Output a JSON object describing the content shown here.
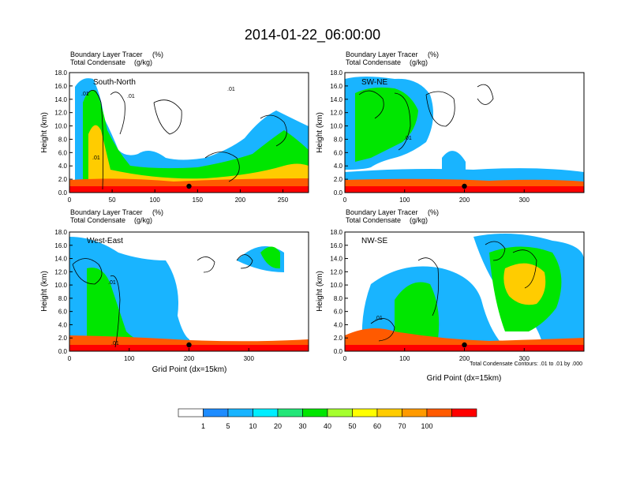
{
  "figure": {
    "title": "2014-01-22_06:00:00"
  },
  "panels": [
    {
      "var_line1": "Boundary Layer Tracer",
      "unit_line1": "(%)",
      "var_line2": "Total Condensate",
      "unit_line2": "(g/kg)",
      "label": "South-North",
      "ylabel": "Height (km)",
      "yticks": [
        "0.0",
        "2.0",
        "4.0",
        "6.0",
        "8.0",
        "10.0",
        "12.0",
        "14.0",
        "16.0",
        "18.0"
      ],
      "xticks": [
        "0",
        "50",
        "100",
        "150",
        "200",
        "250"
      ],
      "xmax": 280,
      "contour_labels": [
        ".01",
        ".01",
        ".01",
        ".01"
      ]
    },
    {
      "var_line1": "Boundary Layer Tracer",
      "unit_line1": "(%)",
      "var_line2": "Total Condensate",
      "unit_line2": "(g/kg)",
      "label": "SW-NE",
      "ylabel": "Height (km)",
      "yticks": [
        "0.0",
        "2.0",
        "4.0",
        "6.0",
        "8.0",
        "10.0",
        "12.0",
        "14.0",
        "16.0",
        "18.0"
      ],
      "xticks": [
        "0",
        "100",
        "200",
        "300"
      ],
      "xmax": 400,
      "contour_labels": [
        ".01"
      ]
    },
    {
      "var_line1": "Boundary Layer Tracer",
      "unit_line1": "(%)",
      "var_line2": "Total Condensate",
      "unit_line2": "(g/kg)",
      "label": "West-East",
      "ylabel": "Height (km)",
      "yticks": [
        "0.0",
        "2.0",
        "4.0",
        "6.0",
        "8.0",
        "10.0",
        "12.0",
        "14.0",
        "16.0",
        "18.0"
      ],
      "xticks": [
        "0",
        "100",
        "200",
        "300"
      ],
      "xmax": 400,
      "xlabel": "Grid Point (dx=15km)",
      "contour_labels": [
        ".01",
        ".01"
      ]
    },
    {
      "var_line1": "Boundary Layer Tracer",
      "unit_line1": "(%)",
      "var_line2": "Total Condensate",
      "unit_line2": "(g/kg)",
      "label": "NW-SE",
      "ylabel": "Height (km)",
      "yticks": [
        "0.0",
        "2.0",
        "4.0",
        "6.0",
        "8.0",
        "10.0",
        "12.0",
        "14.0",
        "16.0",
        "18.0"
      ],
      "xticks": [
        "0",
        "100",
        "200",
        "300"
      ],
      "xmax": 400,
      "xlabel": "Grid Point (dx=15km)",
      "contour_info": "Total Condensate Contours: .01 to .01 by .000",
      "contour_labels": [
        ".01"
      ]
    }
  ],
  "colorbar": {
    "labels": [
      "1",
      "5",
      "10",
      "20",
      "30",
      "40",
      "50",
      "60",
      "70",
      "100"
    ],
    "colors": [
      "#ffffff",
      "#1e8cff",
      "#19b4ff",
      "#00eeff",
      "#22e678",
      "#00e600",
      "#a5ff2e",
      "#ffff00",
      "#ffcc00",
      "#ff9a00",
      "#ff5a00",
      "#ff0000"
    ]
  },
  "chart_data": {
    "type": "heatmap",
    "title": "2014-01-22_06:00:00",
    "description_fields": [
      "Boundary Layer Tracer (%)",
      "Total Condensate (g/kg)"
    ],
    "ylabel": "Height (km)",
    "ylim": [
      0,
      18
    ],
    "xlabel": "Grid Point (dx=15km)",
    "levels": [
      1,
      5,
      10,
      20,
      30,
      40,
      50,
      60,
      70,
      100
    ],
    "panels": [
      {
        "name": "South-North",
        "xlim": [
          0,
          280
        ],
        "marker_x": 140
      },
      {
        "name": "SW-NE",
        "xlim": [
          0,
          400
        ],
        "marker_x": 200
      },
      {
        "name": "West-East",
        "xlim": [
          0,
          400
        ],
        "marker_x": 200
      },
      {
        "name": "NW-SE",
        "xlim": [
          0,
          400
        ],
        "marker_x": 200
      }
    ]
  }
}
